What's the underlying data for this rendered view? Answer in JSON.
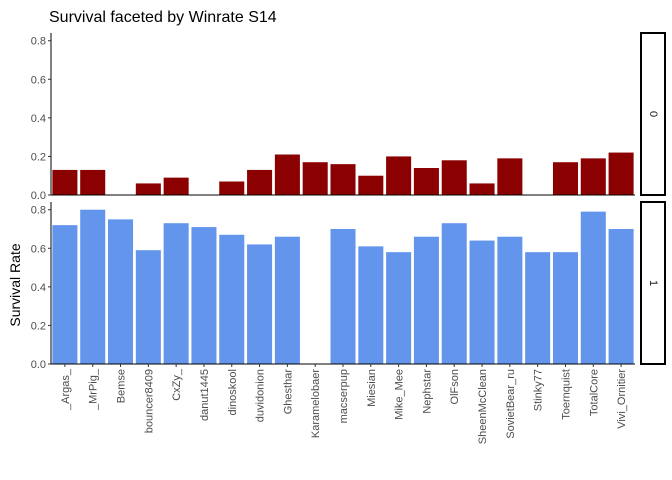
{
  "chart_data": {
    "type": "bar",
    "title": "Survival faceted by Winrate S14",
    "xlabel": "",
    "ylabel": "Survival Rate",
    "ylim": [
      0,
      0.84
    ],
    "yticks": [
      "0.0",
      "0.2",
      "0.4",
      "0.6",
      "0.8"
    ],
    "categories": [
      "_Argas_",
      "_MrPig_",
      "Bemse",
      "bouncer8409",
      "CxZy_",
      "danut1445",
      "dinoskool",
      "duvidonion",
      "Ghesthar",
      "Karamelobaer",
      "macserpup",
      "Miesian",
      "Mike_Mee",
      "Nephstar",
      "OlFson",
      "SheenMcClean",
      "SovietBear_ru",
      "Stinky77",
      "Toernquist",
      "TotalCore",
      "Vivi_Ornitier"
    ],
    "grid": false,
    "facets": [
      {
        "label": "0",
        "color": "#8B0000",
        "values": [
          0.13,
          0.13,
          null,
          0.06,
          0.09,
          null,
          0.07,
          0.13,
          0.21,
          0.17,
          0.16,
          0.1,
          0.2,
          0.14,
          0.18,
          0.06,
          0.19,
          null,
          0.17,
          0.19,
          0.22
        ]
      },
      {
        "label": "1",
        "color": "#6495ED",
        "values": [
          0.72,
          0.8,
          0.75,
          0.59,
          0.73,
          0.71,
          0.67,
          0.62,
          0.66,
          null,
          0.7,
          0.61,
          0.58,
          0.66,
          0.73,
          0.64,
          0.66,
          0.58,
          0.58,
          0.79,
          0.7
        ]
      }
    ]
  }
}
